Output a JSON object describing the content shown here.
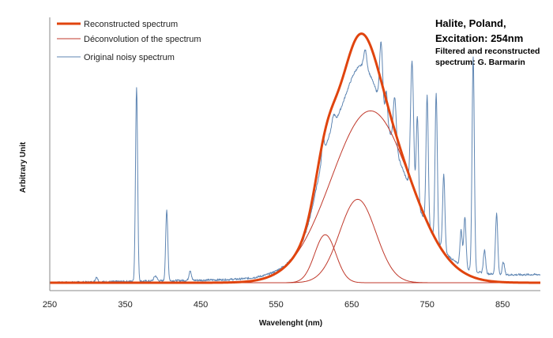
{
  "chart_data": {
    "type": "line",
    "title": "",
    "xlabel": "Wavelenght (nm)",
    "ylabel": "Arbitrary Unit",
    "xlim": [
      250,
      900
    ],
    "ylim": [
      0,
      1.05
    ],
    "x_ticks": [
      250,
      350,
      450,
      550,
      650,
      750,
      850
    ],
    "grid": false,
    "legend": {
      "placement": "top-left",
      "entries": [
        "Reconstructed spectrum",
        "Déconvolution of the spectrum",
        "Original noisy spectrum"
      ]
    },
    "annotation": {
      "title_lines": [
        "Halite, Poland,",
        "Excitation: 254nm"
      ],
      "sub_lines": [
        "Filtered and reconstructed",
        "spectrum: G. Barmarin"
      ]
    },
    "series": [
      {
        "name": "Reconstructed spectrum",
        "color": "#e0440e",
        "kind": "sum_of_gaussians"
      },
      {
        "name": "Déconvolution of the spectrum",
        "color": "#c0392b",
        "kind": "gaussian_components",
        "components": [
          {
            "center": 615,
            "sigma": 14,
            "amplitude": 0.19
          },
          {
            "center": 658,
            "sigma": 24,
            "amplitude": 0.33
          },
          {
            "center": 675,
            "sigma": 52,
            "amplitude": 0.68
          }
        ]
      },
      {
        "name": "Original noisy spectrum",
        "color": "#5f86b3",
        "kind": "emission_lines",
        "baseline_slope": 5e-05,
        "baseline_scale": 0.85,
        "lines": [
          {
            "x": 312,
            "h": 0.02,
            "w": 1.5
          },
          {
            "x": 365,
            "h": 0.77,
            "w": 1.4
          },
          {
            "x": 390,
            "h": 0.02,
            "w": 2
          },
          {
            "x": 405,
            "h": 0.28,
            "w": 1.4
          },
          {
            "x": 436,
            "h": 0.04,
            "w": 1.5
          },
          {
            "x": 612,
            "h": 0.08,
            "w": 1.5
          },
          {
            "x": 626,
            "h": 0.04,
            "w": 2
          },
          {
            "x": 668,
            "h": 0.07,
            "w": 2
          },
          {
            "x": 689,
            "h": 0.25,
            "w": 2
          },
          {
            "x": 696,
            "h": 0.12,
            "w": 1.5
          },
          {
            "x": 707,
            "h": 0.2,
            "w": 2
          },
          {
            "x": 730,
            "h": 0.52,
            "w": 2
          },
          {
            "x": 737,
            "h": 0.35,
            "w": 1.5
          },
          {
            "x": 750,
            "h": 0.51,
            "w": 1.5
          },
          {
            "x": 762,
            "h": 0.58,
            "w": 1.5
          },
          {
            "x": 772,
            "h": 0.3,
            "w": 1.5
          },
          {
            "x": 795,
            "h": 0.14,
            "w": 1.5
          },
          {
            "x": 800,
            "h": 0.2,
            "w": 1.5
          },
          {
            "x": 811,
            "h": 0.85,
            "w": 1.5
          },
          {
            "x": 826,
            "h": 0.09,
            "w": 1.5
          },
          {
            "x": 842,
            "h": 0.24,
            "w": 1.5
          },
          {
            "x": 851,
            "h": 0.05,
            "w": 1.5
          }
        ]
      }
    ]
  }
}
